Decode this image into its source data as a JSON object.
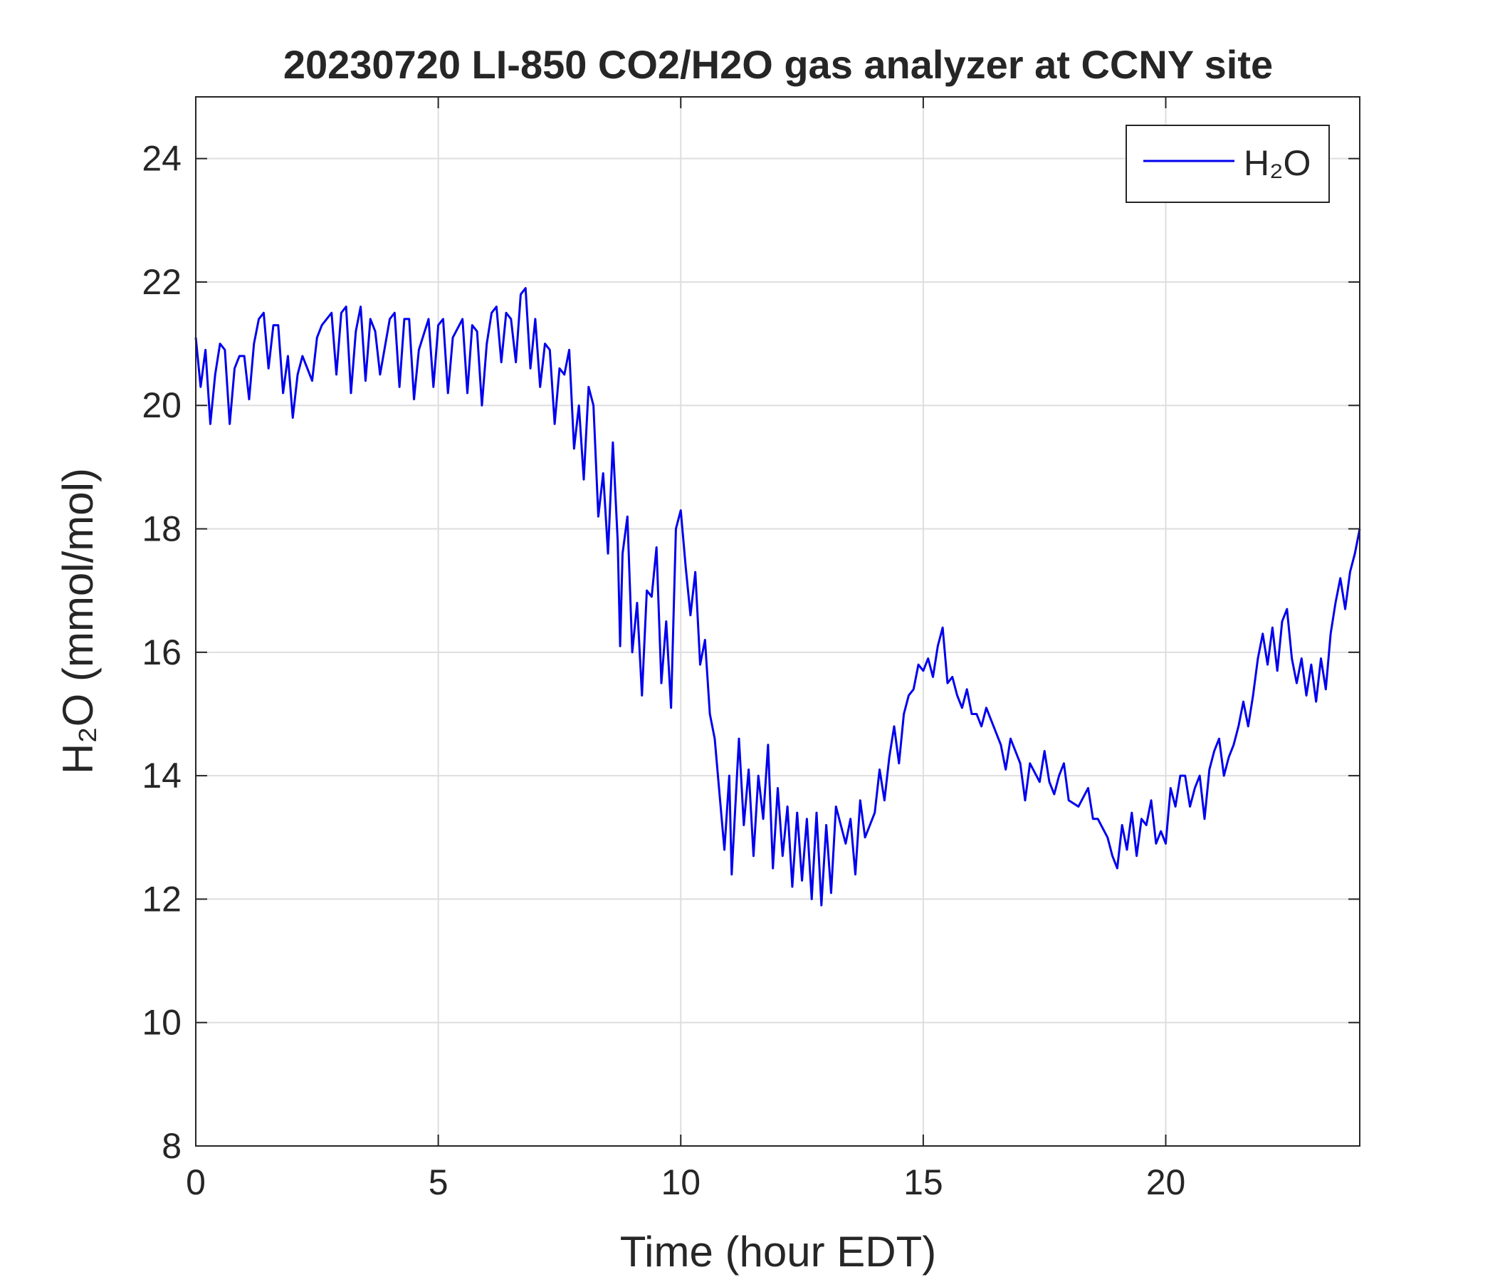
{
  "chart_data": {
    "type": "line",
    "title": "20230720 LI-850 CO2/H2O gas analyzer at CCNY site",
    "xlabel": "Time (hour EDT)",
    "ylabel": "H₂O (mmol/mol)",
    "xlim": [
      0,
      24
    ],
    "ylim": [
      8,
      25
    ],
    "xticks": [
      0,
      5,
      10,
      15,
      20
    ],
    "yticks": [
      8,
      10,
      12,
      14,
      16,
      18,
      20,
      22,
      24
    ],
    "grid": true,
    "legend": "upper right",
    "x": [
      0,
      0.1,
      0.2,
      0.3,
      0.4,
      0.5,
      0.6,
      0.7,
      0.8,
      0.9,
      1.0,
      1.1,
      1.2,
      1.3,
      1.4,
      1.5,
      1.6,
      1.7,
      1.8,
      1.9,
      2.0,
      2.1,
      2.2,
      2.4,
      2.5,
      2.6,
      2.8,
      2.9,
      3.0,
      3.1,
      3.2,
      3.3,
      3.4,
      3.5,
      3.6,
      3.7,
      3.8,
      4.0,
      4.1,
      4.2,
      4.3,
      4.4,
      4.5,
      4.6,
      4.8,
      4.9,
      5.0,
      5.1,
      5.2,
      5.3,
      5.5,
      5.6,
      5.7,
      5.8,
      5.9,
      6.0,
      6.1,
      6.2,
      6.3,
      6.4,
      6.5,
      6.6,
      6.7,
      6.8,
      6.9,
      7.0,
      7.1,
      7.2,
      7.3,
      7.4,
      7.5,
      7.6,
      7.7,
      7.8,
      7.9,
      8.0,
      8.1,
      8.2,
      8.3,
      8.4,
      8.5,
      8.6,
      8.7,
      8.75,
      8.8,
      8.9,
      9.0,
      9.1,
      9.2,
      9.3,
      9.4,
      9.5,
      9.6,
      9.7,
      9.8,
      9.9,
      10.0,
      10.1,
      10.2,
      10.3,
      10.4,
      10.5,
      10.6,
      10.7,
      10.8,
      10.9,
      11.0,
      11.05,
      11.2,
      11.3,
      11.4,
      11.5,
      11.6,
      11.7,
      11.8,
      11.9,
      12.0,
      12.1,
      12.2,
      12.3,
      12.4,
      12.5,
      12.6,
      12.7,
      12.8,
      12.9,
      13.0,
      13.1,
      13.2,
      13.4,
      13.5,
      13.6,
      13.7,
      13.8,
      14.0,
      14.1,
      14.2,
      14.3,
      14.4,
      14.5,
      14.6,
      14.7,
      14.8,
      14.9,
      15.0,
      15.1,
      15.2,
      15.3,
      15.4,
      15.5,
      15.6,
      15.7,
      15.8,
      15.9,
      16.0,
      16.1,
      16.2,
      16.3,
      16.4,
      16.5,
      16.6,
      16.7,
      16.8,
      17.0,
      17.1,
      17.2,
      17.4,
      17.5,
      17.6,
      17.7,
      17.8,
      17.9,
      18.0,
      18.2,
      18.4,
      18.5,
      18.6,
      18.8,
      18.9,
      19.0,
      19.1,
      19.2,
      19.3,
      19.4,
      19.5,
      19.6,
      19.7,
      19.8,
      19.9,
      20.0,
      20.1,
      20.2,
      20.3,
      20.4,
      20.5,
      20.6,
      20.7,
      20.8,
      20.9,
      21.0,
      21.1,
      21.2,
      21.3,
      21.4,
      21.5,
      21.6,
      21.7,
      21.8,
      21.9,
      22.0,
      22.1,
      22.2,
      22.3,
      22.4,
      22.5,
      22.6,
      22.7,
      22.8,
      22.9,
      23.0,
      23.1,
      23.2,
      23.3,
      23.4,
      23.5,
      23.6,
      23.7,
      23.8,
      23.9,
      24.0
    ],
    "series": [
      {
        "name": "H₂O",
        "color": "#0000ee",
        "values": [
          21.1,
          20.3,
          20.9,
          19.7,
          20.5,
          21.0,
          20.9,
          19.7,
          20.6,
          20.8,
          20.8,
          20.1,
          21.0,
          21.4,
          21.5,
          20.6,
          21.3,
          21.3,
          20.2,
          20.8,
          19.8,
          20.5,
          20.8,
          20.4,
          21.1,
          21.3,
          21.5,
          20.5,
          21.5,
          21.6,
          20.2,
          21.2,
          21.6,
          20.4,
          21.4,
          21.2,
          20.5,
          21.4,
          21.5,
          20.3,
          21.4,
          21.4,
          20.1,
          20.9,
          21.4,
          20.3,
          21.3,
          21.4,
          20.2,
          21.1,
          21.4,
          20.2,
          21.3,
          21.2,
          20.0,
          21.0,
          21.5,
          21.6,
          20.7,
          21.5,
          21.4,
          20.7,
          21.8,
          21.9,
          20.6,
          21.4,
          20.3,
          21.0,
          20.9,
          19.7,
          20.6,
          20.5,
          20.9,
          19.3,
          20.0,
          18.8,
          20.3,
          20.0,
          18.2,
          18.9,
          17.6,
          19.4,
          17.8,
          16.1,
          17.6,
          18.2,
          16.0,
          16.8,
          15.3,
          17.0,
          16.9,
          17.7,
          15.5,
          16.5,
          15.1,
          18.0,
          18.3,
          17.4,
          16.6,
          17.3,
          15.8,
          16.2,
          15.0,
          14.6,
          13.7,
          12.8,
          14.0,
          12.4,
          14.6,
          13.2,
          14.1,
          12.7,
          14.0,
          13.3,
          14.5,
          12.5,
          13.8,
          12.7,
          13.5,
          12.2,
          13.4,
          12.3,
          13.3,
          12.0,
          13.4,
          11.9,
          13.2,
          12.1,
          13.5,
          12.9,
          13.3,
          12.4,
          13.6,
          13.0,
          13.4,
          14.1,
          13.6,
          14.3,
          14.8,
          14.2,
          15.0,
          15.3,
          15.4,
          15.8,
          15.7,
          15.9,
          15.6,
          16.1,
          16.4,
          15.5,
          15.6,
          15.3,
          15.1,
          15.4,
          15.0,
          15.0,
          14.8,
          15.1,
          14.9,
          14.7,
          14.5,
          14.1,
          14.6,
          14.2,
          13.6,
          14.2,
          13.9,
          14.4,
          13.9,
          13.7,
          14.0,
          14.2,
          13.6,
          13.5,
          13.8,
          13.3,
          13.3,
          13.0,
          12.7,
          12.5,
          13.2,
          12.8,
          13.4,
          12.7,
          13.3,
          13.2,
          13.6,
          12.9,
          13.1,
          12.9,
          13.8,
          13.5,
          14.0,
          14.0,
          13.5,
          13.8,
          14.0,
          13.3,
          14.1,
          14.4,
          14.6,
          14.0,
          14.3,
          14.5,
          14.8,
          15.2,
          14.8,
          15.3,
          15.9,
          16.3,
          15.8,
          16.4,
          15.7,
          16.5,
          16.7,
          15.9,
          15.5,
          15.9,
          15.3,
          15.8,
          15.2,
          15.9,
          15.4,
          16.3,
          16.8,
          17.2,
          16.7,
          17.3,
          17.6,
          18.0
        ]
      }
    ]
  }
}
